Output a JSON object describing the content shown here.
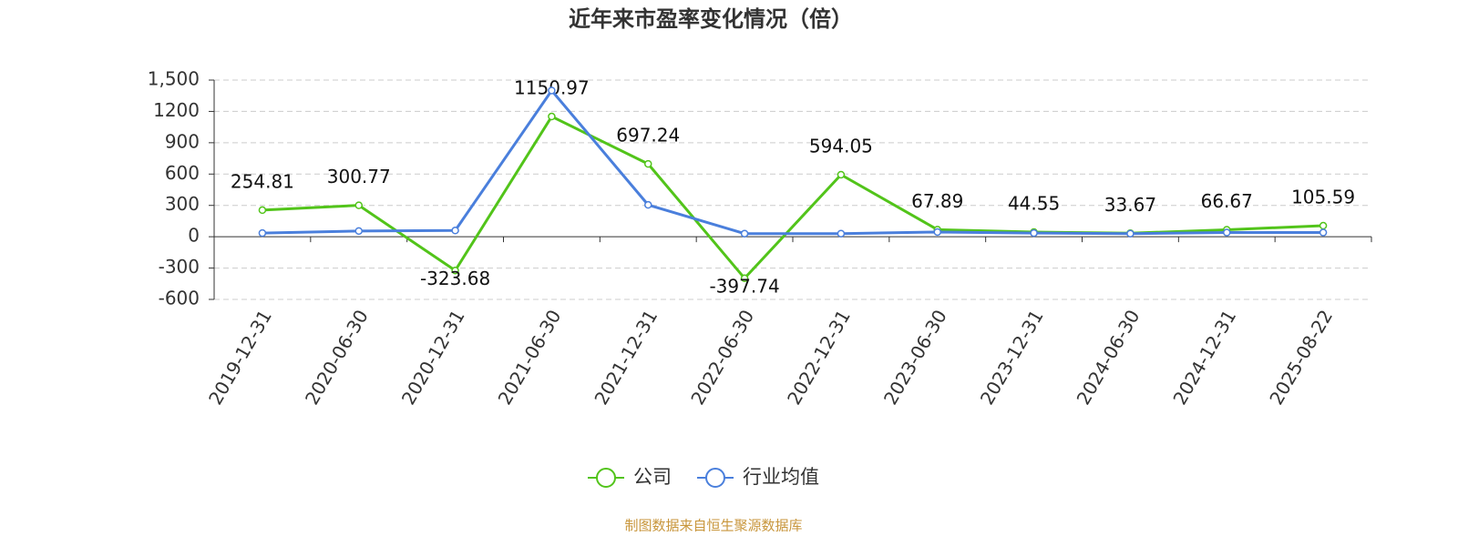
{
  "chart_data": {
    "type": "line",
    "title": "近年来市盈率变化情况（倍）",
    "categories": [
      "2019-12-31",
      "2020-06-30",
      "2020-12-31",
      "2021-06-30",
      "2021-12-31",
      "2022-06-30",
      "2022-12-31",
      "2023-06-30",
      "2023-12-31",
      "2024-06-30",
      "2024-12-31",
      "2025-08-22"
    ],
    "series": [
      {
        "name": "公司",
        "color": "#52c41a",
        "values": [
          254.81,
          300.77,
          -323.68,
          1150.97,
          697.24,
          -397.74,
          594.05,
          67.89,
          44.55,
          33.67,
          66.67,
          105.59
        ]
      },
      {
        "name": "行业均值",
        "color": "#4a7fdc",
        "values": [
          35,
          55,
          60,
          1400,
          305,
          30,
          30,
          45,
          35,
          30,
          40,
          40
        ]
      }
    ],
    "ylim": [
      -600,
      1500
    ],
    "yticks": [
      -600,
      -300,
      0,
      300,
      600,
      900,
      1200,
      {
        "value": 1500,
        "label": "1,500"
      }
    ],
    "grid": true,
    "legend": "bottom",
    "source": "制图数据来自恒生聚源数据库"
  }
}
